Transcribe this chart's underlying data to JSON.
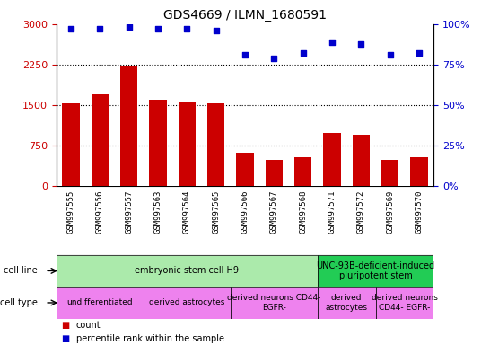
{
  "title": "GDS4669 / ILMN_1680591",
  "samples": [
    "GSM997555",
    "GSM997556",
    "GSM997557",
    "GSM997563",
    "GSM997564",
    "GSM997565",
    "GSM997566",
    "GSM997567",
    "GSM997568",
    "GSM997571",
    "GSM997572",
    "GSM997569",
    "GSM997570"
  ],
  "counts": [
    1540,
    1700,
    2230,
    1600,
    1560,
    1540,
    620,
    480,
    540,
    980,
    960,
    490,
    540
  ],
  "percentile": [
    97,
    97,
    98,
    97,
    97,
    96,
    81,
    79,
    82,
    89,
    88,
    81,
    82
  ],
  "bar_color": "#cc0000",
  "dot_color": "#0000cc",
  "ylim_left": [
    0,
    3000
  ],
  "ylim_right": [
    0,
    100
  ],
  "yticks_left": [
    0,
    750,
    1500,
    2250,
    3000
  ],
  "yticks_right": [
    0,
    25,
    50,
    75,
    100
  ],
  "cell_line_groups": [
    {
      "label": "embryonic stem cell H9",
      "start": 0,
      "end": 8,
      "color": "#abeaab"
    },
    {
      "label": "UNC-93B-deficient-induced\npluripotent stem",
      "start": 9,
      "end": 12,
      "color": "#22cc55"
    }
  ],
  "cell_type_groups": [
    {
      "label": "undifferentiated",
      "start": 0,
      "end": 2,
      "color": "#ee82ee"
    },
    {
      "label": "derived astrocytes",
      "start": 3,
      "end": 5,
      "color": "#ee82ee"
    },
    {
      "label": "derived neurons CD44-\nEGFR-",
      "start": 6,
      "end": 8,
      "color": "#ee82ee"
    },
    {
      "label": "derived\nastrocytes",
      "start": 9,
      "end": 10,
      "color": "#ee82ee"
    },
    {
      "label": "derived neurons\nCD44- EGFR-",
      "start": 11,
      "end": 12,
      "color": "#ee82ee"
    }
  ],
  "xtick_bg_color": "#cccccc",
  "tick_label_color_left": "#cc0000",
  "tick_label_color_right": "#0000cc"
}
